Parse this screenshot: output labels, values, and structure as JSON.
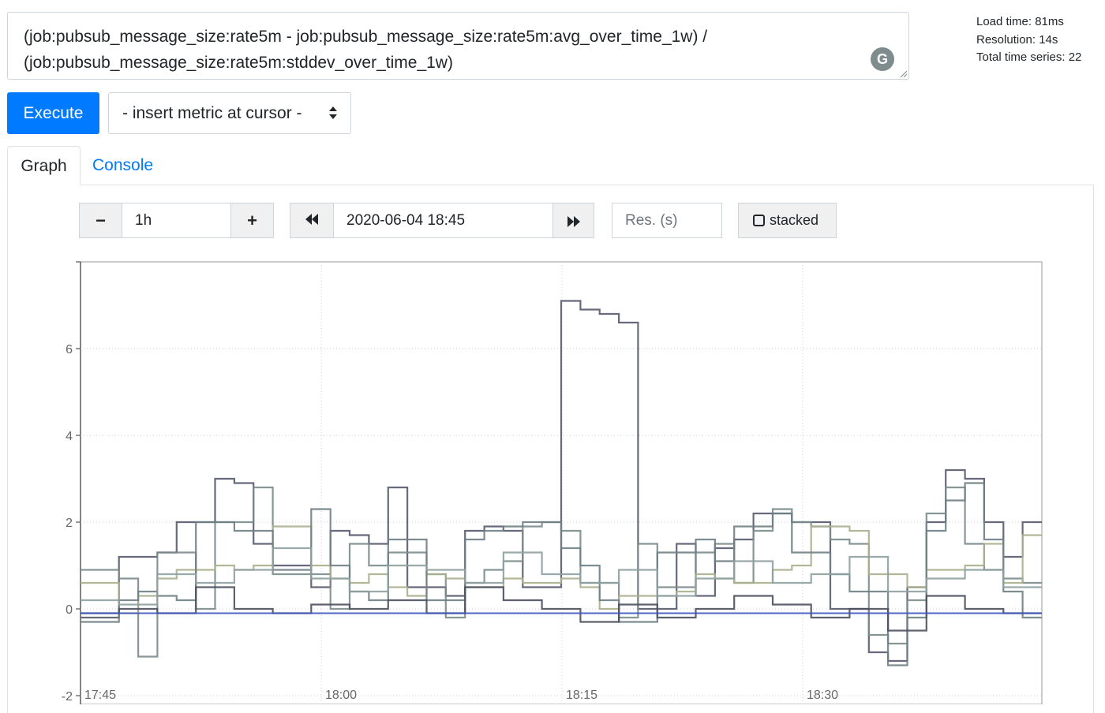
{
  "query": {
    "line1": "(job:pubsub_message_size:rate5m - job:pubsub_message_size:rate5m:avg_over_time_1w) /",
    "line2": "(job:pubsub_message_size:rate5m:stddev_over_time_1w)",
    "grammarly_icon": "G"
  },
  "stats": {
    "load_time": "Load time: 81ms",
    "resolution": "Resolution: 14s",
    "total_series": "Total time series: 22"
  },
  "execute_label": "Execute",
  "metric_select": "- insert metric at cursor -",
  "tabs": {
    "graph": "Graph",
    "console": "Console"
  },
  "controls": {
    "minus": "−",
    "range": "1h",
    "plus": "+",
    "back": "◀◀",
    "end_time": "2020-06-04 18:45",
    "forward": "▶▶",
    "res_placeholder": "Res. (s)",
    "stacked": "stacked"
  },
  "colors": {
    "accent": "#007bff"
  },
  "chart_data": {
    "type": "line",
    "y_ticks": [
      "6",
      "4",
      "2",
      "0",
      "-2"
    ],
    "x_ticks": [
      "17:45",
      "18:00",
      "18:15",
      "18:30"
    ],
    "ylim": [
      -2,
      8
    ],
    "grid": true,
    "legend": "none",
    "series_colors": [
      "#555a6e",
      "#7a8b8b",
      "#a9b08c",
      "#6e7f85",
      "#4b4f5e",
      "#8fa0a0",
      "#3b56c0"
    ],
    "series": [
      {
        "values": [
          -0.2,
          -0.2,
          1.2,
          1.2,
          1.3,
          2.0,
          2.0,
          3.0,
          2.9,
          1.5,
          1.0,
          1.0,
          0.5,
          1.8,
          1.7,
          1.5,
          2.8,
          0.5,
          0.5,
          0.3,
          1.8,
          1.9,
          1.8,
          0.5,
          0.5,
          7.1,
          6.9,
          6.8,
          6.6,
          0.0,
          0.0,
          1.5,
          0.3,
          1.4,
          1.6,
          2.2,
          2.2,
          2.0,
          2.0,
          0.0,
          0.0,
          -1.0,
          -1.2,
          0.5,
          2.0,
          3.2,
          3.0,
          2.0,
          1.2,
          2.0
        ]
      },
      {
        "values": [
          0.9,
          0.9,
          0.7,
          -1.1,
          1.3,
          1.3,
          0.0,
          2.0,
          2.0,
          2.8,
          0.8,
          0.8,
          0.8,
          0.0,
          1.5,
          1.0,
          1.3,
          1.3,
          0.8,
          -0.2,
          0.6,
          0.9,
          1.1,
          1.9,
          2.0,
          1.8,
          0.6,
          0.6,
          -0.2,
          1.5,
          0.5,
          0.5,
          1.3,
          1.5,
          0.6,
          1.8,
          2.3,
          2.0,
          1.9,
          1.6,
          1.5,
          -0.6,
          -0.8,
          0.2,
          2.2,
          2.8,
          1.5,
          0.9,
          0.7,
          0.6
        ]
      },
      {
        "values": [
          0.6,
          0.6,
          -0.1,
          0.3,
          0.7,
          0.9,
          0.9,
          1.0,
          0.9,
          1.0,
          1.9,
          1.9,
          1.0,
          0.7,
          0.6,
          0.8,
          0.5,
          0.3,
          0.8,
          0.7,
          0.5,
          0.5,
          0.7,
          0.6,
          0.6,
          0.7,
          0.5,
          0.0,
          0.3,
          0.3,
          0.3,
          0.4,
          0.8,
          0.7,
          0.6,
          0.6,
          0.9,
          1.0,
          1.9,
          1.9,
          1.8,
          0.8,
          0.8,
          0.5,
          0.9,
          0.9,
          1.0,
          1.5,
          0.6,
          1.7
        ]
      },
      {
        "values": [
          -0.3,
          -0.3,
          0.2,
          0.4,
          0.3,
          0.2,
          2.0,
          2.0,
          1.8,
          1.8,
          0.9,
          0.9,
          2.3,
          1.0,
          0.4,
          0.2,
          1.6,
          1.6,
          0.2,
          0.2,
          1.6,
          1.8,
          1.9,
          2.0,
          2.0,
          1.4,
          1.0,
          0.2,
          -0.3,
          -0.3,
          1.3,
          1.3,
          1.6,
          1.1,
          1.9,
          1.9,
          2.2,
          1.3,
          1.3,
          0.8,
          0.4,
          0.4,
          -1.3,
          -0.2,
          1.8,
          2.5,
          2.9,
          1.6,
          0.4,
          -0.2
        ]
      },
      {
        "values": [
          -0.1,
          -0.1,
          0.0,
          0.0,
          -0.1,
          -0.1,
          0.5,
          0.5,
          0.0,
          0.0,
          -0.1,
          -0.1,
          0.1,
          0.1,
          0.0,
          0.0,
          0.2,
          0.2,
          -0.1,
          -0.1,
          0.5,
          0.5,
          0.2,
          0.2,
          0.0,
          0.0,
          -0.3,
          -0.3,
          0.1,
          0.1,
          -0.2,
          -0.2,
          0.0,
          0.0,
          0.3,
          0.3,
          0.1,
          0.1,
          -0.2,
          -0.2,
          0.0,
          0.0,
          -0.5,
          -0.5,
          0.3,
          0.3,
          0.0,
          0.0,
          -0.1,
          -0.1
        ]
      },
      {
        "values": [
          0.2,
          0.2,
          0.1,
          0.1,
          0.8,
          0.8,
          0.6,
          0.6,
          0.9,
          0.9,
          1.4,
          1.4,
          0.7,
          0.7,
          0.4,
          0.4,
          1.0,
          1.0,
          0.9,
          0.9,
          0.6,
          0.6,
          1.3,
          1.3,
          0.8,
          0.8,
          0.6,
          0.6,
          0.9,
          0.9,
          0.3,
          0.3,
          0.7,
          0.7,
          1.1,
          1.1,
          0.6,
          0.6,
          0.8,
          0.8,
          1.2,
          1.2,
          0.4,
          0.4,
          0.7,
          0.7,
          0.9,
          0.9,
          0.5,
          0.5
        ]
      },
      {
        "values": [
          -0.1,
          -0.1,
          -0.1,
          -0.1,
          -0.1,
          -0.1,
          -0.1,
          -0.1,
          -0.1,
          -0.1,
          -0.1,
          -0.1,
          -0.1,
          -0.1,
          -0.1,
          -0.1,
          -0.1,
          -0.1,
          -0.1,
          -0.1,
          -0.1,
          -0.1,
          -0.1,
          -0.1,
          -0.1,
          -0.1,
          -0.1,
          -0.1,
          -0.1,
          -0.1,
          -0.1,
          -0.1,
          -0.1,
          -0.1,
          -0.1,
          -0.1,
          -0.1,
          -0.1,
          -0.1,
          -0.1,
          -0.1,
          -0.1,
          -0.1,
          -0.1,
          -0.1,
          -0.1,
          -0.1,
          -0.1,
          -0.1,
          -0.1
        ]
      }
    ]
  }
}
